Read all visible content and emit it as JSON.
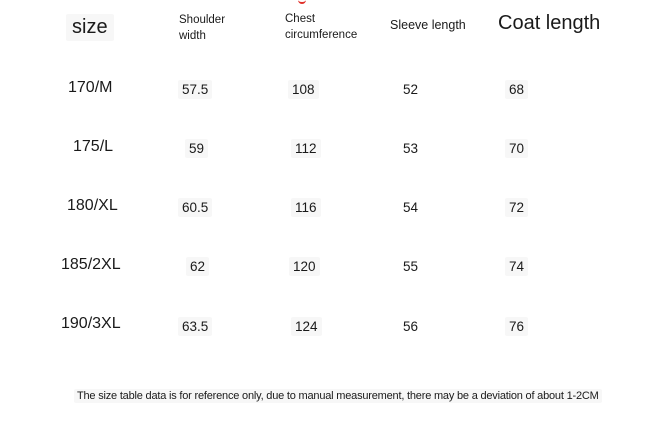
{
  "table": {
    "headers": {
      "size": "size",
      "shoulder": "Shoulder width",
      "chest": "Chest circumference",
      "sleeve": "Sleeve length",
      "coat": "Coat length"
    },
    "rows": [
      {
        "size": "170/M",
        "shoulder": "57.5",
        "chest": "108",
        "sleeve": "52",
        "coat": "68"
      },
      {
        "size": "175/L",
        "shoulder": "59",
        "chest": "112",
        "sleeve": "53",
        "coat": "70"
      },
      {
        "size": "180/XL",
        "shoulder": "60.5",
        "chest": "116",
        "sleeve": "54",
        "coat": "72"
      },
      {
        "size": "185/2XL",
        "shoulder": "62",
        "chest": "120",
        "sleeve": "55",
        "coat": "74"
      },
      {
        "size": "190/3XL",
        "shoulder": "63.5",
        "chest": "124",
        "sleeve": "56",
        "coat": "76"
      }
    ]
  },
  "footnote": "The size table data is for reference only, due to manual measurement, there may be a deviation of about 1-2CM",
  "accent_color": "#e0302a"
}
